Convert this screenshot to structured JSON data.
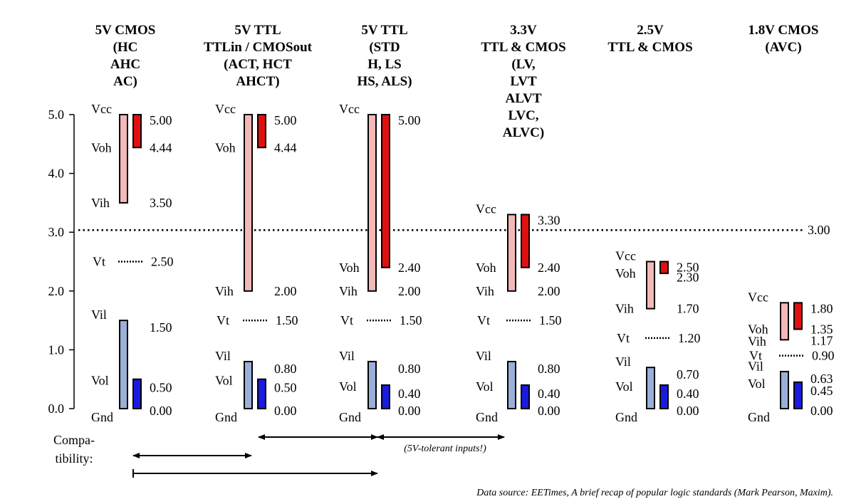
{
  "axis": {
    "ticks": [
      "0.0",
      "1.0",
      "2.0",
      "3.0",
      "4.0",
      "5.0"
    ],
    "min": 0,
    "max": 5
  },
  "threshold": {
    "value": 3.0,
    "label": "3.00"
  },
  "colors": {
    "vih_bar": "#f4b8b8",
    "voh_bar": "#e01010",
    "vil_bar": "#9ab0d8",
    "vol_bar": "#1a1ae0",
    "outline": "#000000"
  },
  "columns": [
    {
      "title": [
        "5V CMOS",
        "(HC",
        "AHC",
        "AC)"
      ],
      "vcc": 5.0,
      "voh": 4.44,
      "vih": 3.5,
      "vt": 2.5,
      "vil": 1.5,
      "vol": 0.5,
      "labels": {
        "vcc": "Vcc",
        "voh": "Voh",
        "vih": "Vih",
        "vt": "Vt",
        "vil": "Vil",
        "vol": "Vol",
        "gnd": "Gnd"
      },
      "values": {
        "vcc": "5.00",
        "voh": "4.44",
        "vih": "3.50",
        "vt": "2.50",
        "vil": "1.50",
        "vol": "0.50",
        "gnd": "0.00"
      }
    },
    {
      "title": [
        "5V TTL",
        "TTLin / CMOSout",
        "(ACT, HCT",
        "AHCT)"
      ],
      "vcc": 5.0,
      "voh": 4.44,
      "vih": 2.0,
      "vt": 1.5,
      "vil": 0.8,
      "vol": 0.5,
      "labels": {
        "vcc": "Vcc",
        "voh": "Voh",
        "vih": "Vih",
        "vt": "Vt",
        "vil": "Vil",
        "vol": "Vol",
        "gnd": "Gnd"
      },
      "values": {
        "vcc": "5.00",
        "voh": "4.44",
        "vih": "2.00",
        "vt": "1.50",
        "vil": "0.80",
        "vol": "0.50",
        "gnd": "0.00"
      }
    },
    {
      "title": [
        "5V TTL",
        "(STD",
        "H, LS",
        "HS, ALS)"
      ],
      "vcc": 5.0,
      "voh": 2.4,
      "vih": 2.0,
      "vt": 1.5,
      "vil": 0.8,
      "vol": 0.4,
      "labels": {
        "vcc": "Vcc",
        "voh": "Voh",
        "vih": "Vih",
        "vt": "Vt",
        "vil": "Vil",
        "vol": "Vol",
        "gnd": "Gnd"
      },
      "values": {
        "vcc": "5.00",
        "voh": "2.40",
        "vih": "2.00",
        "vt": "1.50",
        "vil": "0.80",
        "vol": "0.40",
        "gnd": "0.00"
      }
    },
    {
      "title": [
        "3.3V",
        "TTL & CMOS",
        "(LV,",
        "LVT",
        "ALVT",
        "LVC,",
        "ALVC)"
      ],
      "vcc": 3.3,
      "voh": 2.4,
      "vih": 2.0,
      "vt": 1.5,
      "vil": 0.8,
      "vol": 0.4,
      "labels": {
        "vcc": "Vcc",
        "voh": "Voh",
        "vih": "Vih",
        "vt": "Vt",
        "vil": "Vil",
        "vol": "Vol",
        "gnd": "Gnd"
      },
      "values": {
        "vcc": "3.30",
        "voh": "2.40",
        "vih": "2.00",
        "vt": "1.50",
        "vil": "0.80",
        "vol": "0.40",
        "gnd": "0.00"
      }
    },
    {
      "title": [
        "2.5V",
        "TTL & CMOS"
      ],
      "vcc": 2.5,
      "voh": 2.3,
      "vih": 1.7,
      "vt": 1.2,
      "vil": 0.7,
      "vol": 0.4,
      "labels": {
        "vcc": "Vcc",
        "voh": "Voh",
        "vih": "Vih",
        "vt": "Vt",
        "vil": "Vil",
        "vol": "Vol",
        "gnd": "Gnd"
      },
      "values": {
        "vcc": "2.50",
        "voh": "2.30",
        "vih": "1.70",
        "vt": "1.20",
        "vil": "0.70",
        "vol": "0.40",
        "gnd": "0.00"
      }
    },
    {
      "title": [
        "1.8V CMOS",
        "(AVC)"
      ],
      "vcc": 1.8,
      "voh": 1.35,
      "vih": 1.17,
      "vt": 0.9,
      "vil": 0.63,
      "vol": 0.45,
      "labels": {
        "vcc": "Vcc",
        "voh": "Voh",
        "vih": "Vih",
        "vt": "Vt",
        "vil": "Vil",
        "vol": "Vol",
        "gnd": "Gnd"
      },
      "values": {
        "vcc": "1.80",
        "voh": "1.35",
        "vih": "1.17",
        "vt": "0.90",
        "vil": "0.63",
        "vol": "0.45",
        "gnd": "0.00"
      }
    }
  ],
  "compatibility": {
    "label": [
      "Compa-",
      "tibility:"
    ],
    "note": "(5V-tolerant inputs!)",
    "arrows": [
      {
        "from_col": 0,
        "to_col": 1,
        "type": "double"
      },
      {
        "from_col": 1,
        "to_col": 2,
        "type": "double"
      },
      {
        "from_col": 2,
        "to_col": 3,
        "type": "double"
      },
      {
        "from_col": 0,
        "to_col": 2,
        "type": "single"
      }
    ]
  },
  "source": "Data source: EETimes, A brief recap of popular logic standards (Mark Pearson, Maxim)."
}
